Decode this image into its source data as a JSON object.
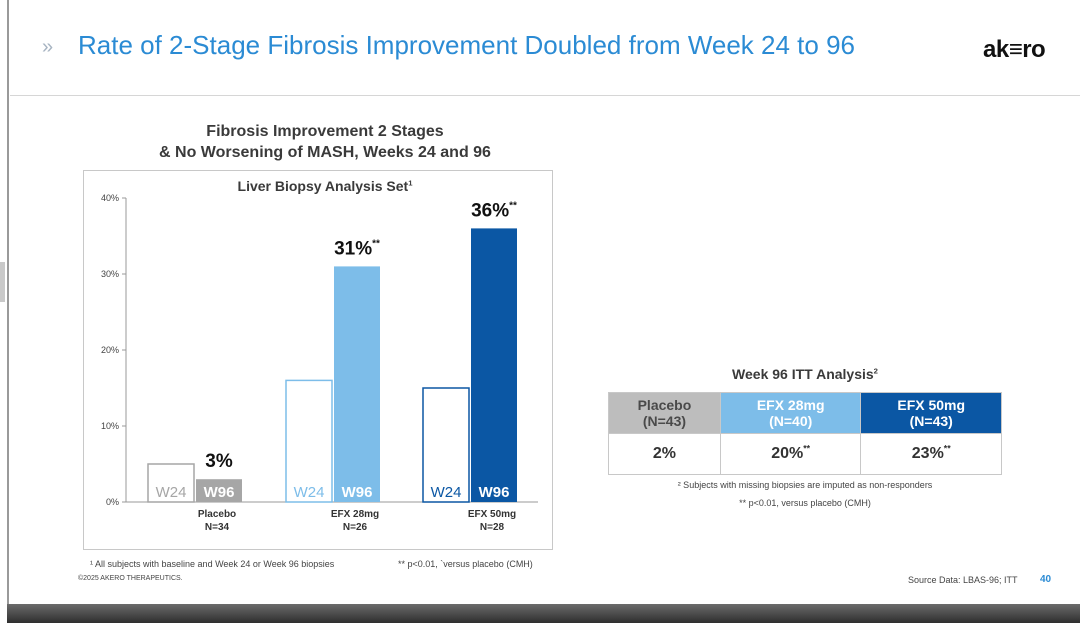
{
  "header": {
    "chevron": "»",
    "title": "Rate of 2-Stage Fibrosis Improvement Doubled from Week 24 to 96",
    "logo": "ak≡ro"
  },
  "chart_data": {
    "type": "bar",
    "title_line1": "Fibrosis Improvement 2 Stages",
    "title_line2": "& No Worsening of MASH, Weeks 24 and 96",
    "subtitle": "Liver Biopsy Analysis Set",
    "subtitle_sup": "1",
    "ylim": [
      0,
      40
    ],
    "yticks": [
      "0%",
      "10%",
      "20%",
      "30%",
      "40%"
    ],
    "ytick_values": [
      0,
      10,
      20,
      30,
      40
    ],
    "grid": false,
    "groups": [
      {
        "name": "Placebo",
        "n": "N=34",
        "color": "#a6a6a6",
        "light": false,
        "w24": 5,
        "w96": 3,
        "w96_label": "3%",
        "w96_sup": ""
      },
      {
        "name": "EFX 28mg",
        "n": "N=26",
        "color": "#7dbde9",
        "light": true,
        "w24": 16,
        "w96": 31,
        "w96_label": "31%",
        "w96_sup": "**"
      },
      {
        "name": "EFX 50mg",
        "n": "N=28",
        "color": "#0b57a4",
        "light": false,
        "w24": 15,
        "w96": 36,
        "w96_label": "36%",
        "w96_sup": "**"
      }
    ],
    "bar_labels": {
      "w24": "W24",
      "w96": "W96"
    }
  },
  "footnotes": {
    "left": "¹ All subjects with baseline and Week 24 or Week 96 biopsies",
    "right": "** p<0.01, `versus placebo (CMH)",
    "copyright": "©2025 AKERO THERAPEUTICS.",
    "source": "Source Data: LBAS-96; ITT",
    "page": "40"
  },
  "itt": {
    "title": "Week 96 ITT Analysis",
    "title_sup": "2",
    "headers": [
      {
        "line1": "Placebo",
        "line2": "(N=43)"
      },
      {
        "line1": "EFX 28mg",
        "line2": "(N=40)"
      },
      {
        "line1": "EFX 50mg",
        "line2": "(N=43)"
      }
    ],
    "values": [
      {
        "v": "2%",
        "sup": ""
      },
      {
        "v": "20%",
        "sup": "**"
      },
      {
        "v": "23%",
        "sup": "**"
      }
    ],
    "footnote1": "² Subjects with missing biopsies are imputed as non-responders",
    "footnote2": "** p<0.01, versus placebo (CMH)"
  }
}
